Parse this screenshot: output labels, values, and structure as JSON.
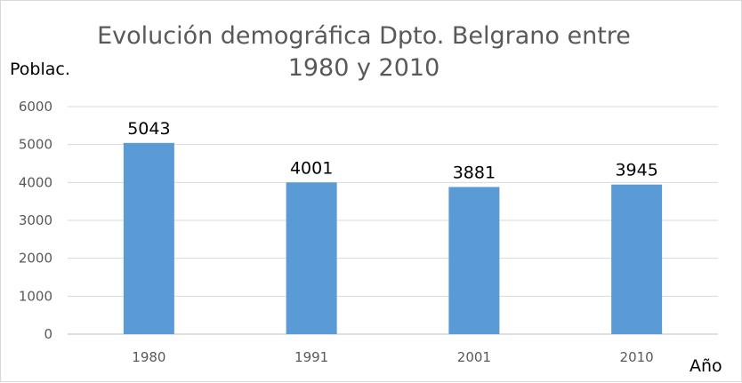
{
  "chart_data": {
    "type": "bar",
    "title_lines": [
      "Evolución demográfica Dpto. Belgrano entre",
      "1980 y 2010"
    ],
    "xlabel": "Año",
    "ylabel": "Poblac.",
    "categories": [
      "1980",
      "1991",
      "2001",
      "2010"
    ],
    "values": [
      5043,
      4001,
      3881,
      3945
    ],
    "ylim": [
      0,
      6000
    ],
    "yticks": [
      "0",
      "1000",
      "2000",
      "3000",
      "4000",
      "5000",
      "6000"
    ],
    "data_labels": [
      "5043",
      "4001",
      "3881",
      "3945"
    ],
    "grid": true,
    "legend": "none",
    "bar_color": "#5b9bd5"
  }
}
